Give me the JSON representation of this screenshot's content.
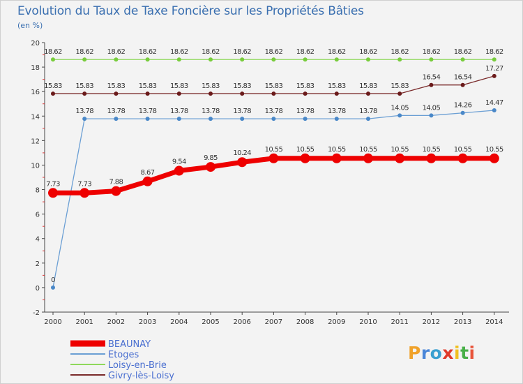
{
  "title": "Evolution du Taux de Taxe Foncière sur les Propriétés Bâties",
  "subtitle": "(en %)",
  "chart_data": {
    "type": "line",
    "title": "Evolution du Taux de Taxe Foncière sur les Propriétés Bâties",
    "ylabel": "(en %)",
    "xlabel": "",
    "ylim": [
      -2,
      20
    ],
    "yticks": [
      -2,
      0,
      2,
      4,
      6,
      8,
      10,
      12,
      14,
      16,
      18,
      20
    ],
    "grid": false,
    "legend": "bottom-left",
    "x": [
      "2000",
      "2001",
      "2002",
      "2003",
      "2004",
      "2005",
      "2006",
      "2007",
      "2008",
      "2009",
      "2010",
      "2011",
      "2012",
      "2013",
      "2014"
    ],
    "series": [
      {
        "name": "BEAUNAY",
        "color": "#ee0000",
        "values": [
          7.73,
          7.73,
          7.88,
          8.67,
          9.54,
          9.85,
          10.24,
          10.55,
          10.55,
          10.55,
          10.55,
          10.55,
          10.55,
          10.55,
          10.55
        ]
      },
      {
        "name": "Etoges",
        "color": "#6b9fd4",
        "values": [
          0,
          13.78,
          13.78,
          13.78,
          13.78,
          13.78,
          13.78,
          13.78,
          13.78,
          13.78,
          13.78,
          14.05,
          14.05,
          14.26,
          14.47
        ]
      },
      {
        "name": "Loisy-en-Brie",
        "color": "#8fd85c",
        "values": [
          18.62,
          18.62,
          18.62,
          18.62,
          18.62,
          18.62,
          18.62,
          18.62,
          18.62,
          18.62,
          18.62,
          18.62,
          18.62,
          18.62,
          18.62
        ]
      },
      {
        "name": "Givry-lès-Loisy",
        "color": "#7a2a2a",
        "values": [
          15.83,
          15.83,
          15.83,
          15.83,
          15.83,
          15.83,
          15.83,
          15.83,
          15.83,
          15.83,
          15.83,
          15.83,
          16.54,
          16.54,
          17.27
        ]
      }
    ]
  },
  "logo": {
    "text": "Proxiti",
    "colors": [
      "#f0a22a",
      "#4a86d8",
      "#3aa0d0",
      "#e03a2a",
      "#f0c020",
      "#48b048",
      "#e8543a"
    ]
  }
}
